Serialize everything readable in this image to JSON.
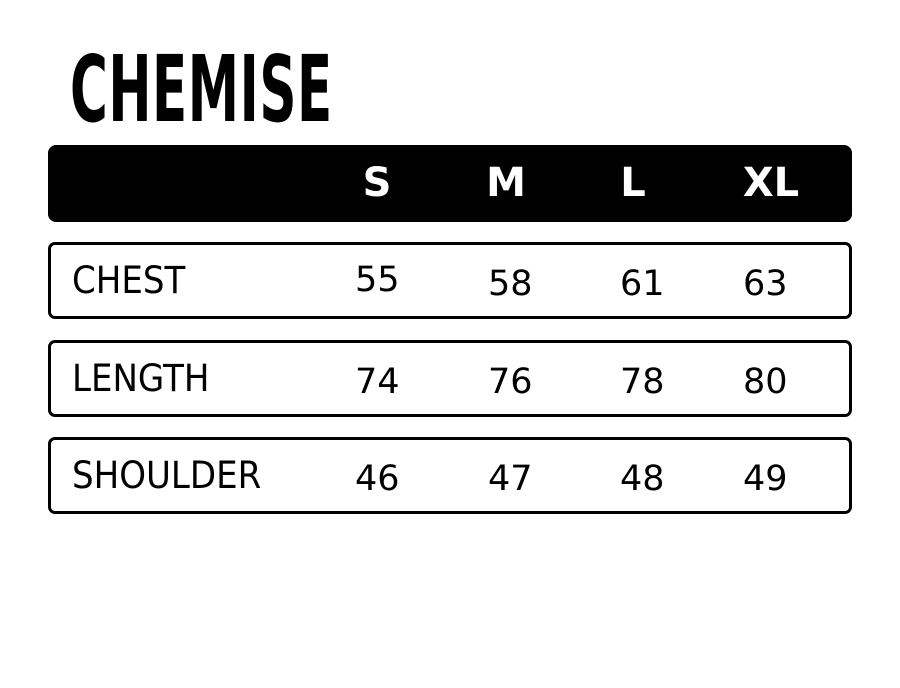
{
  "title": "CHEMISE",
  "sizes": [
    "S",
    "M",
    "L",
    "XL"
  ],
  "rows": [
    {
      "label": "CHEST",
      "values": [
        "55",
        "58",
        "61",
        "63"
      ]
    },
    {
      "label": "LENGTH",
      "values": [
        "74",
        "76",
        "78",
        "80"
      ]
    },
    {
      "label": "SHOULDER",
      "values": [
        "46",
        "47",
        "48",
        "49"
      ]
    }
  ],
  "colors": {
    "header_bg": "#000000",
    "header_text": "#ffffff",
    "border": "#000000"
  }
}
